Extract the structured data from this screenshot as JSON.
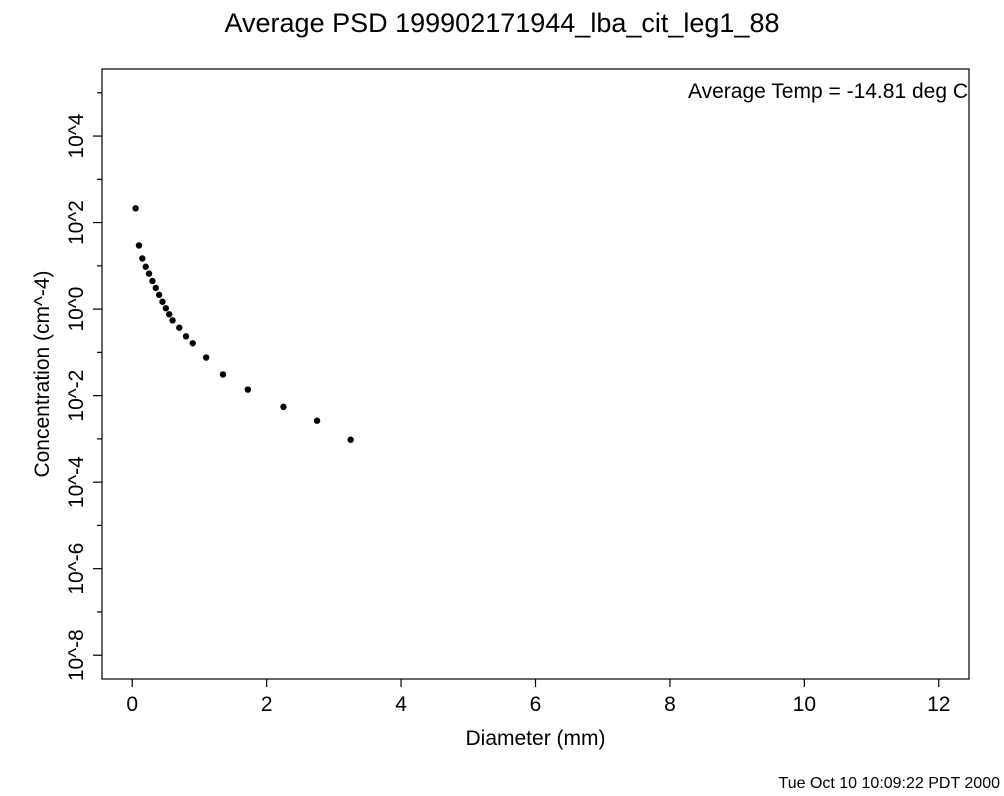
{
  "chart_data": {
    "type": "scatter",
    "title": "Average PSD 199902171944_lba_cit_leg1_88",
    "xlabel": "Diameter (mm)",
    "ylabel": "Concentration (cm^-4)",
    "annotation": "Average Temp = -14.81 deg C",
    "xlim": [
      -0.45,
      12.45
    ],
    "ylim": [
      -8.55,
      5.55
    ],
    "yscale": "log10",
    "x_ticks": [
      0,
      2,
      4,
      6,
      8,
      10,
      12
    ],
    "x_tick_labels": [
      "0",
      "2",
      "4",
      "6",
      "8",
      "10",
      "12"
    ],
    "y_major_ticks": [
      -8,
      -6,
      -4,
      -2,
      0,
      2,
      4
    ],
    "y_tick_labels": [
      "10^-8",
      "10^-6",
      "10^-4",
      "10^-2",
      "10^0",
      "10^2",
      "10^4"
    ],
    "y_minor_ticks": [
      -7,
      -5,
      -3,
      -1,
      1,
      3,
      5
    ],
    "grid": false,
    "marker_color": "#000000",
    "series": [
      {
        "x": [
          0.05,
          0.1,
          0.15,
          0.2,
          0.25,
          0.3,
          0.35,
          0.4,
          0.45,
          0.5,
          0.55,
          0.6,
          0.7,
          0.8,
          0.9,
          1.1,
          1.35,
          1.72,
          2.25,
          2.75,
          3.25
        ],
        "log10_y": [
          2.33,
          1.47,
          1.17,
          0.98,
          0.82,
          0.65,
          0.49,
          0.33,
          0.17,
          0.02,
          -0.12,
          -0.26,
          -0.43,
          -0.63,
          -0.79,
          -1.12,
          -1.51,
          -1.86,
          -2.26,
          -2.58,
          -3.02
        ]
      }
    ]
  },
  "footer": {
    "timestamp": "Tue Oct 10 10:09:22 PDT 2000"
  }
}
